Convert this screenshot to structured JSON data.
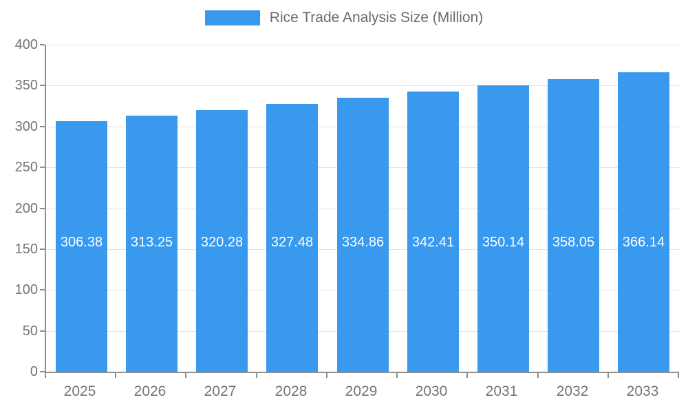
{
  "legend": {
    "label": "Rice Trade Analysis Size (Million)"
  },
  "colors": {
    "bar": "#3899ef",
    "grid": "#e2e2e2",
    "axis": "#8f8f8f",
    "tick_text": "#757575",
    "legend_text": "#6b6b6b",
    "value_text": "#ffffff"
  },
  "chart_data": {
    "type": "bar",
    "title": "Rice Trade Analysis Size (Million)",
    "categories": [
      "2025",
      "2026",
      "2027",
      "2028",
      "2029",
      "2030",
      "2031",
      "2032",
      "2033"
    ],
    "values": [
      306.38,
      313.25,
      320.28,
      327.48,
      334.86,
      342.41,
      350.14,
      358.05,
      366.14
    ],
    "value_labels": [
      "306.38",
      "313.25",
      "320.28",
      "327.48",
      "334.86",
      "342.41",
      "350.14",
      "358.05",
      "366.14"
    ],
    "xlabel": "",
    "ylabel": "",
    "ylim": [
      0,
      400
    ],
    "ytick_step": 50,
    "ytick_labels": [
      "0",
      "50",
      "100",
      "150",
      "200",
      "250",
      "300",
      "350",
      "400"
    ],
    "grid": true,
    "legend_position": "top",
    "value_label_anchor": 158
  }
}
